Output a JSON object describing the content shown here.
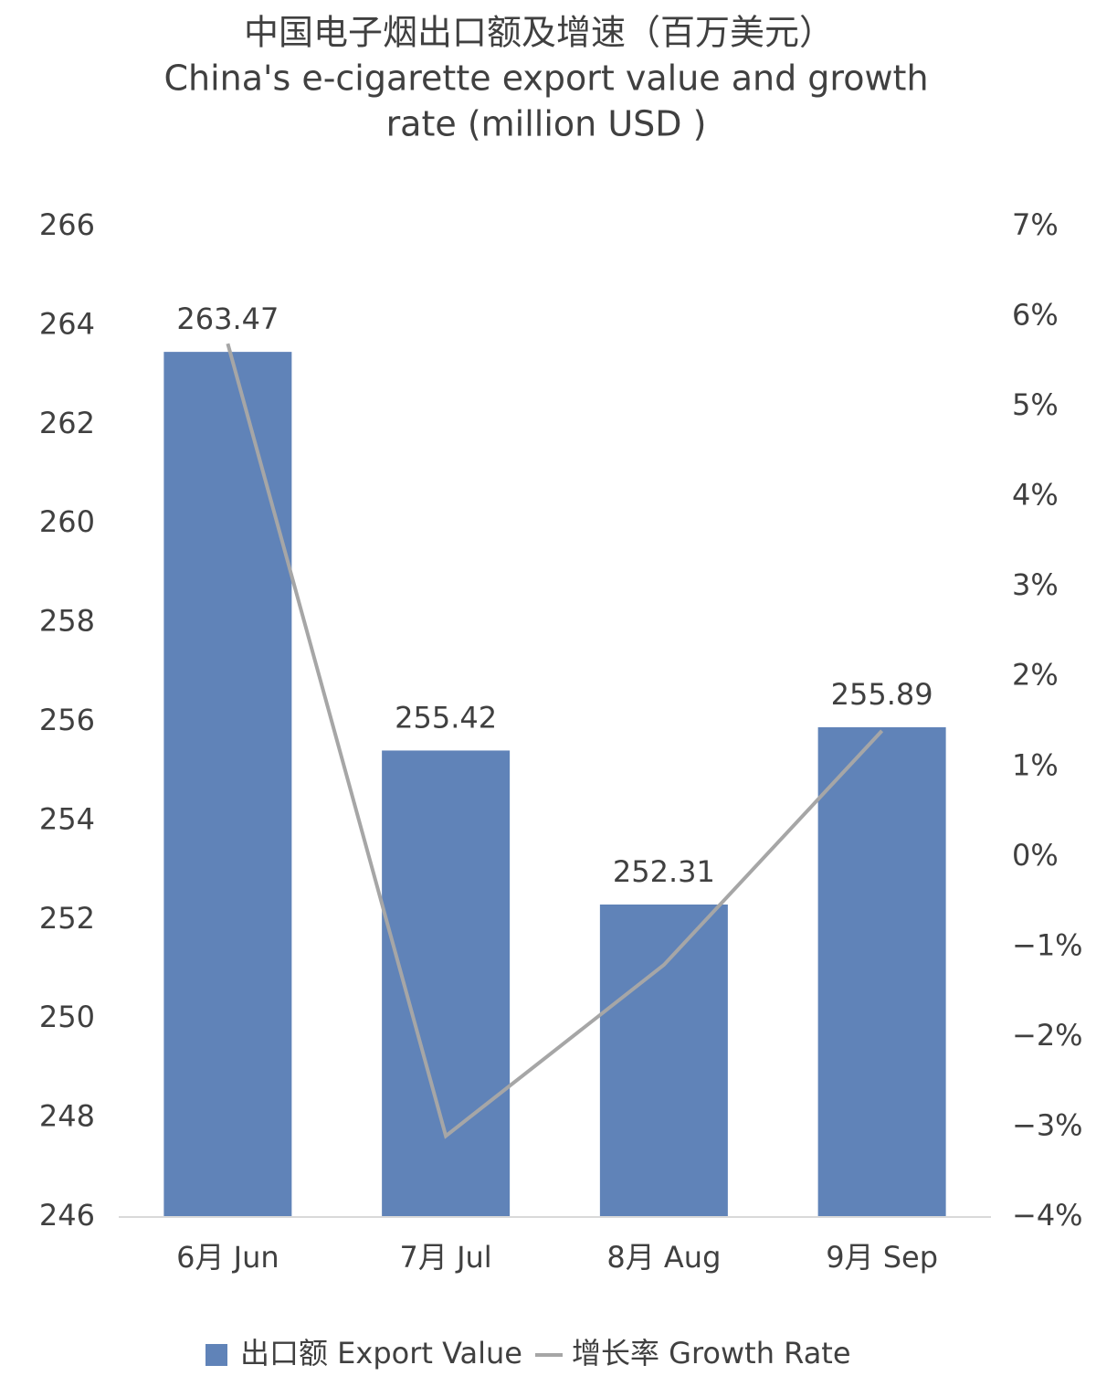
{
  "chart_data": {
    "type": "bar-line",
    "title": [
      "中国电子烟出口额及增速（百万美元）",
      "China's e-cigarette export value and growth",
      "rate (million USD )"
    ],
    "categories": [
      "6月 Jun",
      "7月 Jul",
      "8月 Aug",
      "9月 Sep"
    ],
    "series": [
      {
        "name": "出口额 Export Value",
        "type": "bar",
        "color": "#6083b8",
        "values": [
          263.47,
          255.42,
          252.31,
          255.89
        ],
        "data_labels": true
      },
      {
        "name": "增长率 Growth Rate",
        "type": "line",
        "color": "#a6a6a6",
        "axis": "y2",
        "values": [
          5.7,
          -3.1,
          -1.2,
          1.4
        ]
      }
    ],
    "ylim": [
      246,
      266
    ],
    "yticks": [
      246,
      248,
      250,
      252,
      254,
      256,
      258,
      260,
      262,
      264,
      266
    ],
    "y2lim": [
      -4,
      7
    ],
    "y2ticks": [
      {
        "value": -4,
        "label": "−4%"
      },
      {
        "value": -3,
        "label": "−3%"
      },
      {
        "value": -2,
        "label": "−2%"
      },
      {
        "value": -1,
        "label": "−1%"
      },
      {
        "value": 0,
        "label": "0%"
      },
      {
        "value": 1,
        "label": "1%"
      },
      {
        "value": 2,
        "label": "2%"
      },
      {
        "value": 3,
        "label": "3%"
      },
      {
        "value": 4,
        "label": "4%"
      },
      {
        "value": 5,
        "label": "5%"
      },
      {
        "value": 6,
        "label": "6%"
      },
      {
        "value": 7,
        "label": "7%"
      }
    ],
    "legend": "bottom"
  }
}
